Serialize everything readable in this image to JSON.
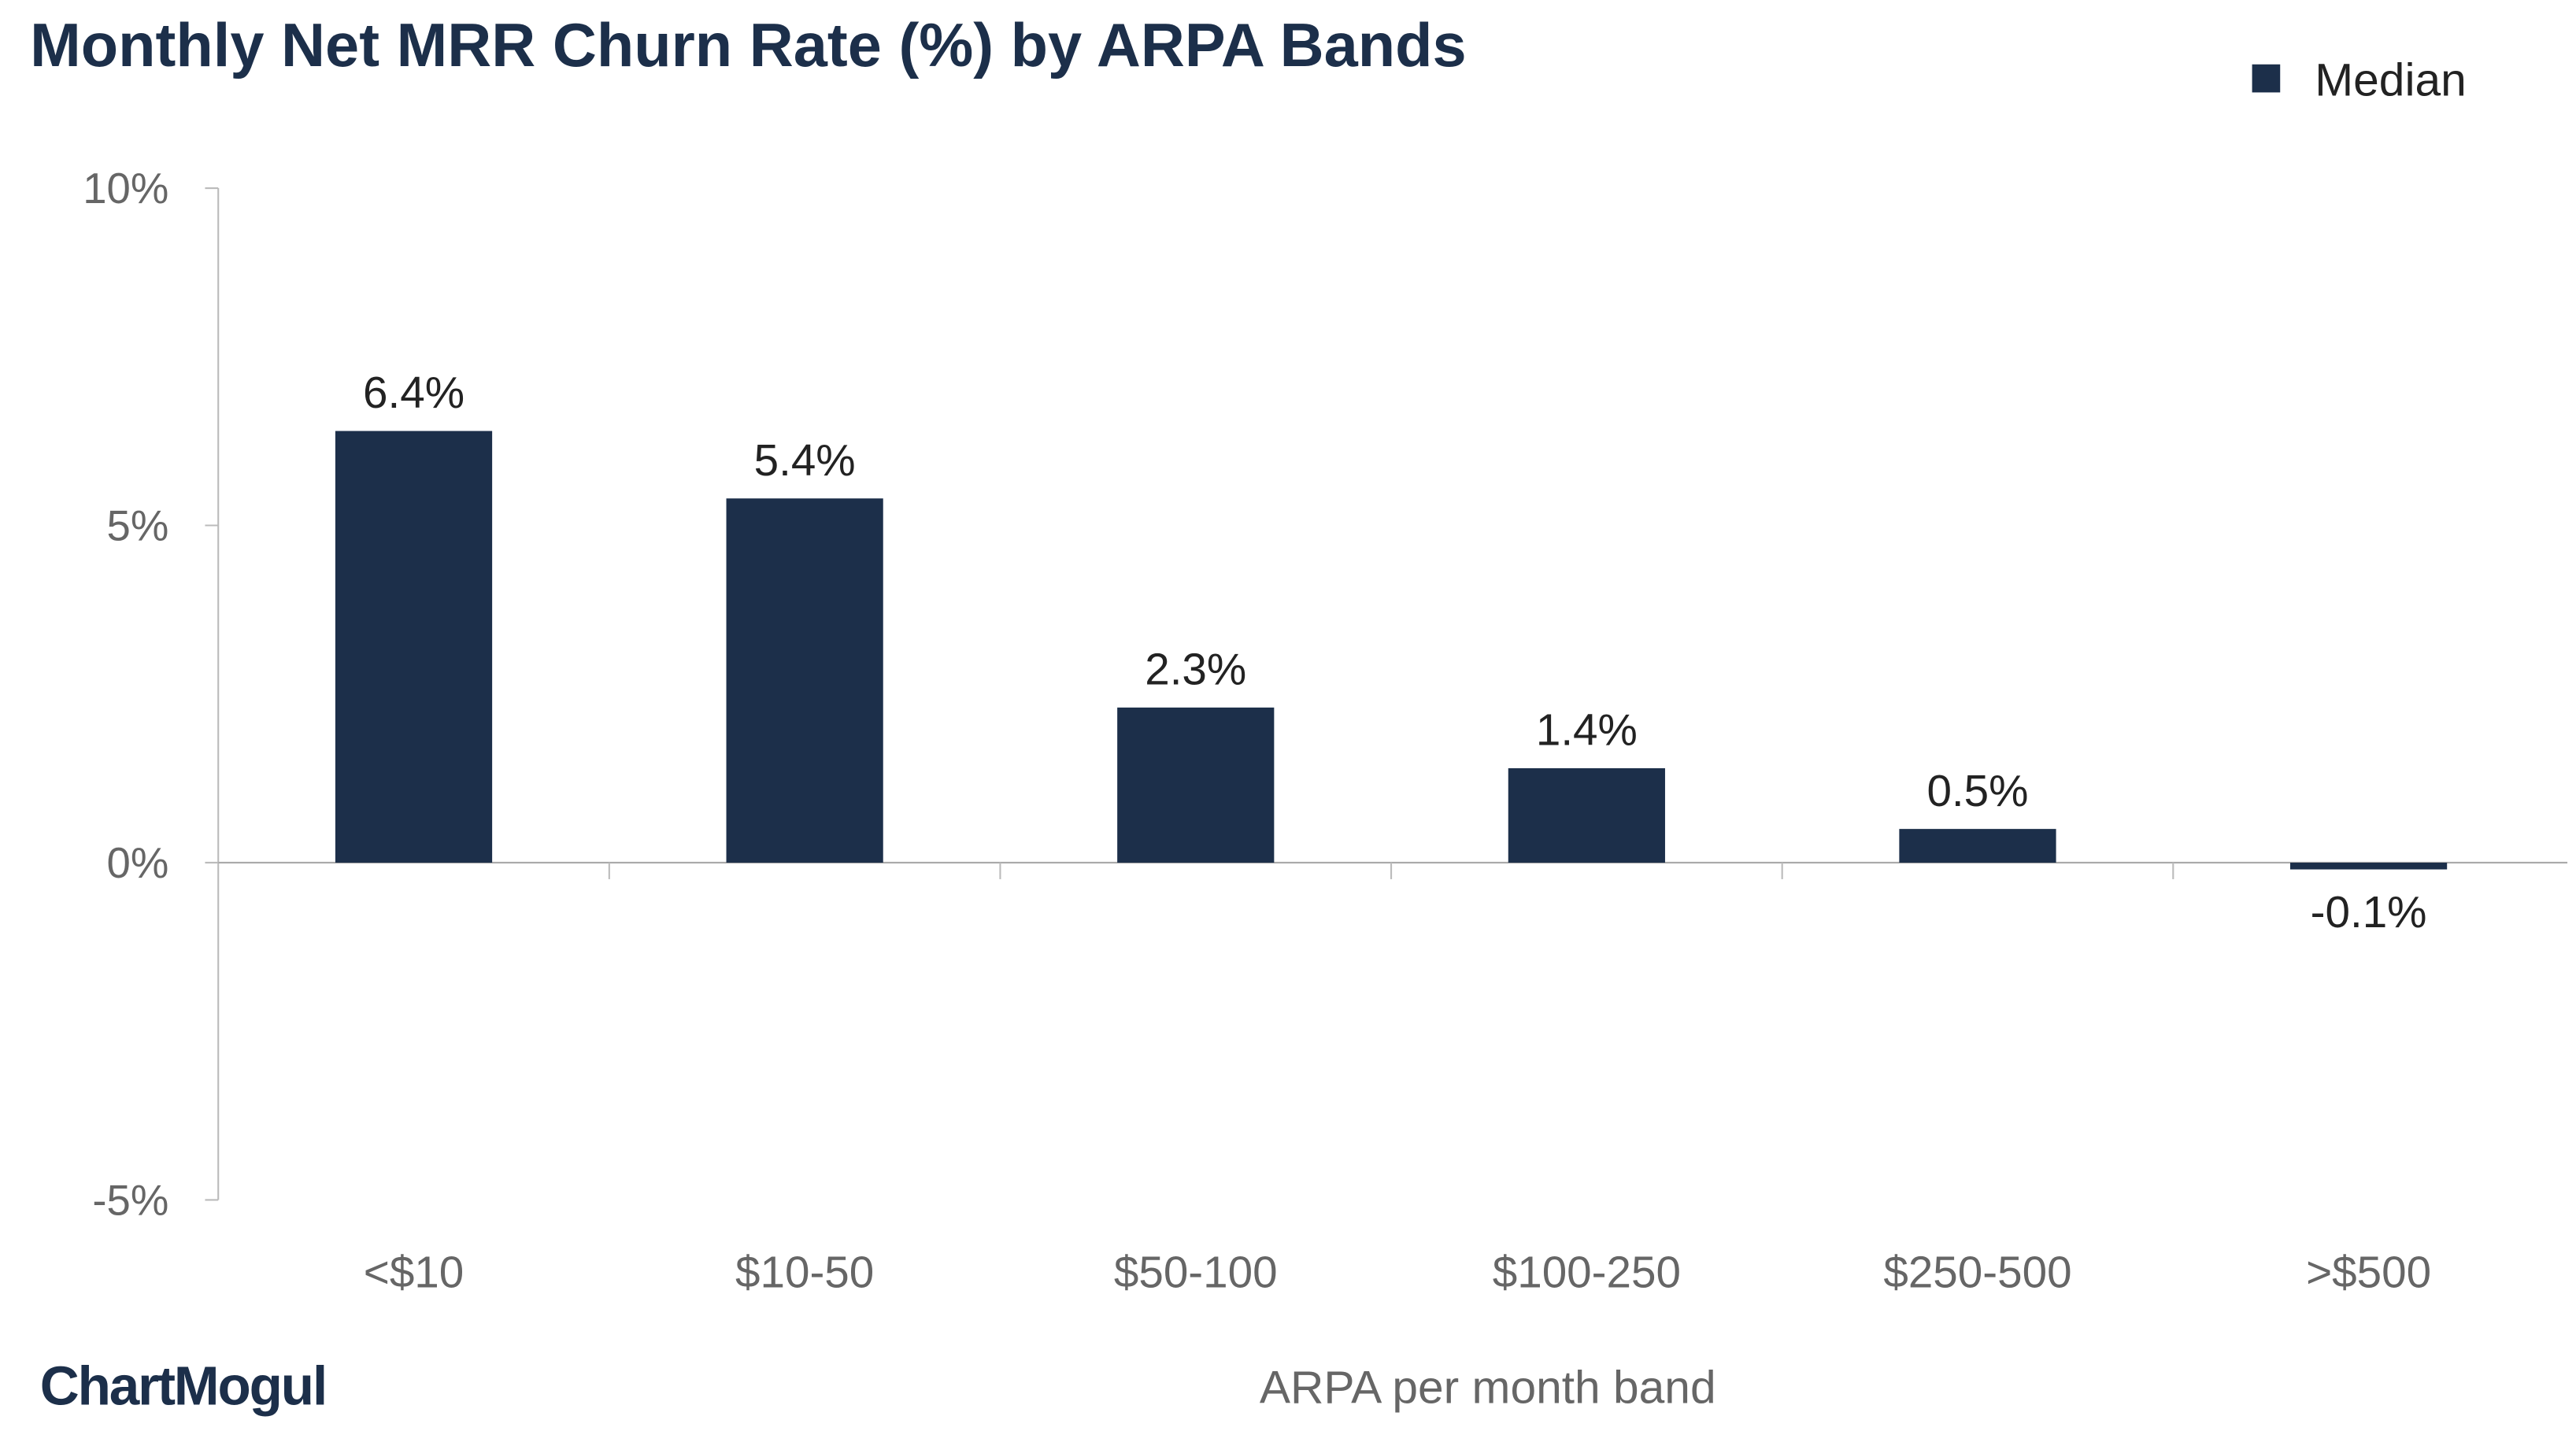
{
  "chart_data": {
    "type": "bar",
    "title": "Monthly Net MRR Churn Rate (%) by ARPA Bands",
    "xlabel": "ARPA per month band",
    "ylabel": "",
    "categories": [
      "<$10",
      "$10-50",
      "$50-100",
      "$100-250",
      "$250-500",
      ">$500"
    ],
    "series": [
      {
        "name": "Median",
        "values": [
          6.4,
          5.4,
          2.3,
          1.4,
          0.5,
          -0.1
        ],
        "color": "#1c2f4a"
      }
    ],
    "data_labels": [
      "6.4%",
      "5.4%",
      "2.3%",
      "1.4%",
      "0.5%",
      "-0.1%"
    ],
    "ylim": [
      -5,
      10
    ],
    "yticks": [
      10,
      5,
      0,
      -5
    ],
    "ytick_labels": [
      "10%",
      "5%",
      "0%",
      "-5%"
    ],
    "legend": {
      "position": "top-right",
      "entries": [
        "Median"
      ]
    },
    "grid": false
  },
  "branding": {
    "logo": "ChartMogul"
  }
}
